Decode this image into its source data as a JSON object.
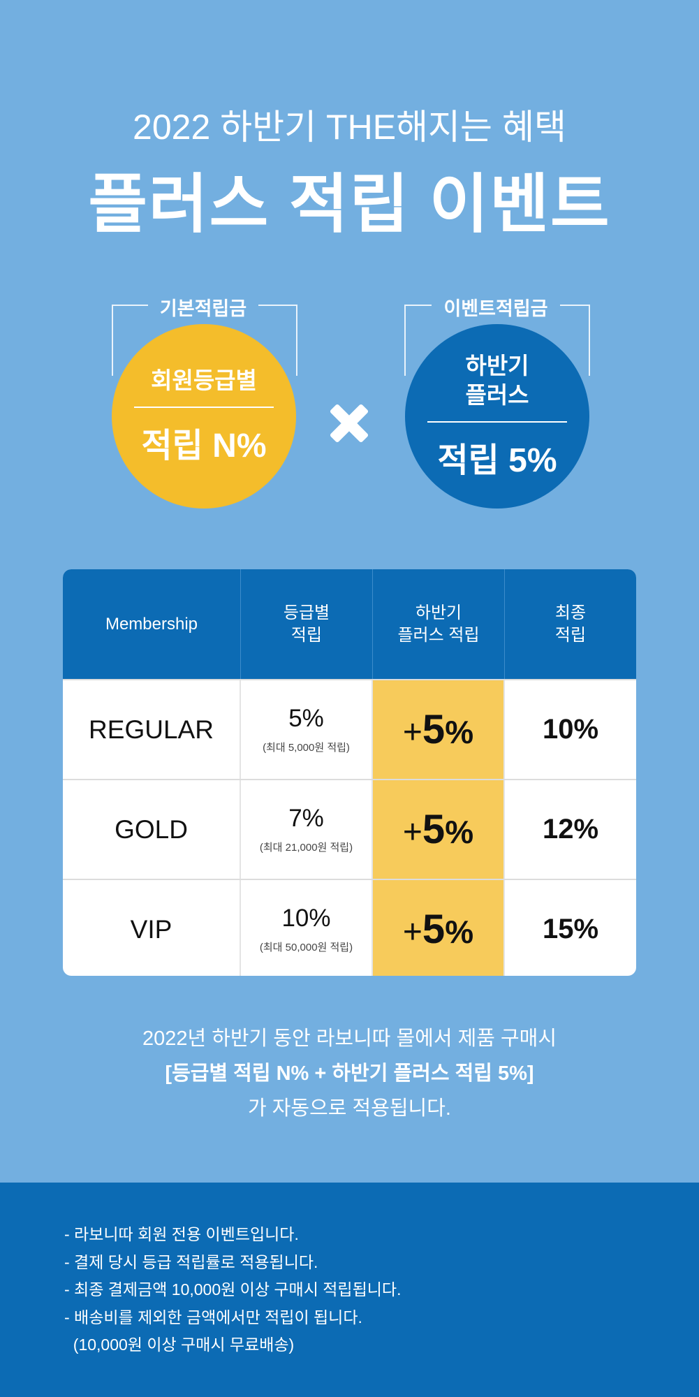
{
  "header": {
    "subtitle": "2022 하반기 THE해지는 혜택",
    "title": "플러스 적립 이벤트"
  },
  "benefits": {
    "basic": {
      "label": "기본적립금",
      "top": "회원등급별",
      "value": "적립 N%"
    },
    "event": {
      "label": "이벤트적립금",
      "top_line1": "하반기",
      "top_line2": "플러스",
      "value": "적립 5%"
    },
    "operator_icon": "multiply-icon"
  },
  "table": {
    "headers": {
      "membership": "Membership",
      "grade_line1": "등급별",
      "grade_line2": "적립",
      "plus_line1": "하반기",
      "plus_line2": "플러스 적립",
      "final_line1": "최종",
      "final_line2": "적립"
    },
    "rows": [
      {
        "grade": "REGULAR",
        "rate": "5%",
        "note": "(최대 5,000원 적립)",
        "plus_sign": "+",
        "plus_num": "5",
        "plus_pct": "%",
        "final": "10%"
      },
      {
        "grade": "GOLD",
        "rate": "7%",
        "note": "(최대 21,000원 적립)",
        "plus_sign": "+",
        "plus_num": "5",
        "plus_pct": "%",
        "final": "12%"
      },
      {
        "grade": "VIP",
        "rate": "10%",
        "note": "(최대 50,000원 적립)",
        "plus_sign": "+",
        "plus_num": "5",
        "plus_pct": "%",
        "final": "15%"
      }
    ]
  },
  "description": {
    "line1": "2022년 하반기 동안 라보니따 몰에서 제품 구매시",
    "line2": "[등급별 적립 N% + 하반기 플러스 적립 5%]",
    "line3": "가 자동으로 적용됩니다."
  },
  "notes": [
    "- 라보니따 회원 전용 이벤트입니다.",
    "- 결제 당시 등급 적립률로 적용됩니다.",
    "- 최종 결제금액 10,000원 이상 구매시 적립됩니다.",
    "- 배송비를 제외한 금액에서만 적립이 됩니다.",
    "  (10,000원 이상 구매시 무료배송)"
  ],
  "colors": {
    "background": "#73afe0",
    "primary_blue": "#0c6bb4",
    "yellow": "#f4bd2b",
    "highlight_yellow": "#f7cb5b"
  }
}
